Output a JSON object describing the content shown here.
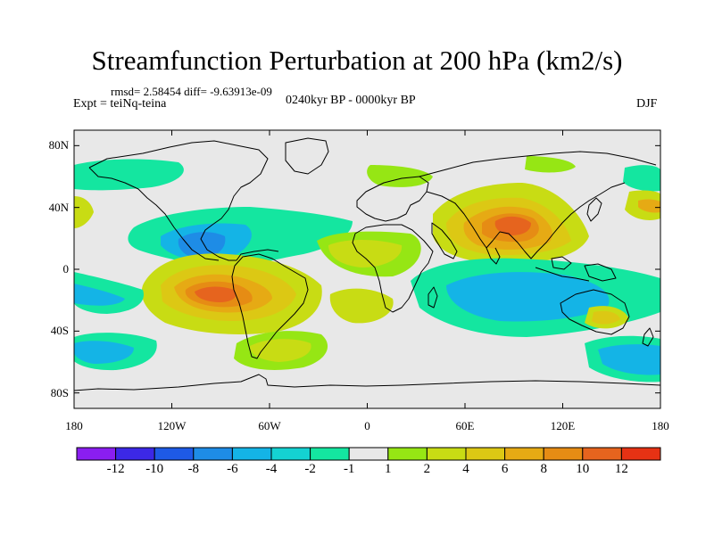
{
  "title": "Streamfunction Perturbation at 200 hPa (km2/s)",
  "stats": "rmsd= 2.58454 diff= -9.63913e-09",
  "experiment": "Expt = teiNq-teina",
  "period": "0240kyr BP - 0000kyr BP",
  "season": "DJF",
  "map": {
    "projection": "cylindrical-equidistant",
    "lon_range": [
      -180,
      180
    ],
    "lat_range": [
      -90,
      90
    ],
    "lat_ticks": [
      {
        "lat": 80,
        "label": "80N"
      },
      {
        "lat": 40,
        "label": "40N"
      },
      {
        "lat": 0,
        "label": "0"
      },
      {
        "lat": -40,
        "label": "40S"
      },
      {
        "lat": -80,
        "label": "80S"
      }
    ],
    "lon_ticks": [
      {
        "lon": -180,
        "label": "180"
      },
      {
        "lon": -120,
        "label": "120W"
      },
      {
        "lon": -60,
        "label": "60W"
      },
      {
        "lon": 0,
        "label": "0"
      },
      {
        "lon": 60,
        "label": "60E"
      },
      {
        "lon": 120,
        "label": "120E"
      },
      {
        "lon": 180,
        "label": "180"
      }
    ],
    "background_color": "#e8e8e8",
    "coastline_color": "#000000"
  },
  "colorbar": {
    "colors": [
      "#8a1ef0",
      "#3c28e6",
      "#1e5ae6",
      "#1e8ce6",
      "#14b4e6",
      "#14d2d2",
      "#14e6a0",
      "#e8e8e8",
      "#96e614",
      "#c8dc14",
      "#dcc814",
      "#e6aa14",
      "#e68c14",
      "#e6641e",
      "#e63214"
    ],
    "labels": [
      "-12",
      "-10",
      "-8",
      "-6",
      "-4",
      "-2",
      "-1",
      "1",
      "2",
      "4",
      "6",
      "8",
      "10",
      "12"
    ]
  },
  "anomaly_regions": [
    {
      "name": "south-pacific-high",
      "level": 10,
      "color": "#e6641e"
    },
    {
      "name": "south-asia-high",
      "level": 10,
      "color": "#e6641e"
    },
    {
      "name": "mexico-low",
      "level": -6,
      "color": "#1e8ce6"
    },
    {
      "name": "south-atlantic-positive",
      "level": 4,
      "color": "#dcc814"
    },
    {
      "name": "indian-ocean-low",
      "level": -4,
      "color": "#14b4e6"
    }
  ]
}
